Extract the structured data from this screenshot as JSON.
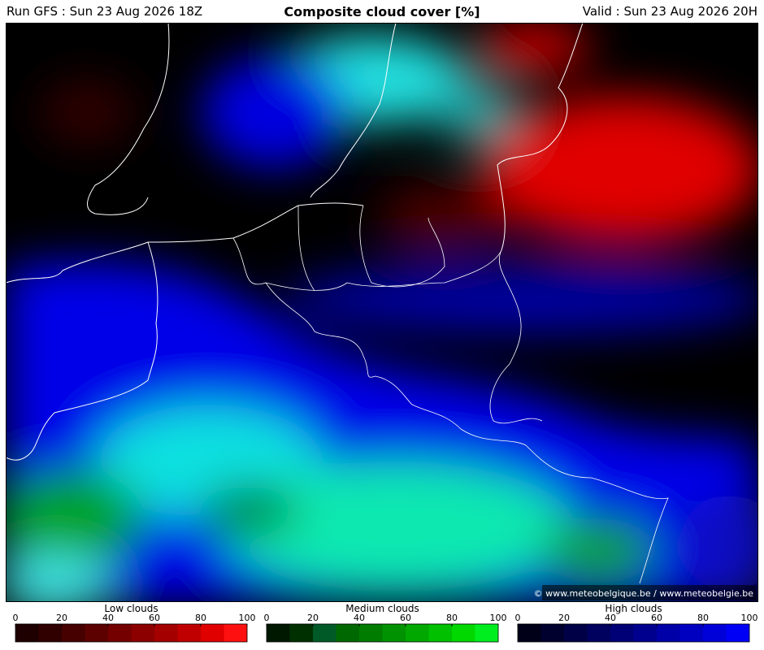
{
  "header": {
    "run": "Run GFS : Sun 23 Aug 2026 18Z",
    "title": "Composite cloud cover [%]",
    "valid": "Valid : Sun 23 Aug 2026 20H"
  },
  "attribution": "© www.meteobelgique.be / www.meteobelgie.be",
  "legends": [
    {
      "title": "Low clouds",
      "ticks": [
        0,
        20,
        40,
        60,
        80,
        100
      ],
      "colors": [
        "#1e0000",
        "#300000",
        "#460000",
        "#5c0000",
        "#740000",
        "#8c0000",
        "#a40000",
        "#c00000",
        "#e00000",
        "#ff1010"
      ]
    },
    {
      "title": "Medium clouds",
      "ticks": [
        0,
        20,
        40,
        60,
        80,
        100
      ],
      "colors": [
        "#001800",
        "#003000",
        "#005a28",
        "#006800",
        "#007c00",
        "#009200",
        "#00a800",
        "#00c000",
        "#00d800",
        "#00ee20"
      ]
    },
    {
      "title": "High clouds",
      "ticks": [
        0,
        20,
        40,
        60,
        80,
        100
      ],
      "colors": [
        "#000018",
        "#00002e",
        "#000046",
        "#00005e",
        "#000076",
        "#00008e",
        "#0000a8",
        "#0000c0",
        "#0000d8",
        "#0000f6"
      ]
    }
  ]
}
